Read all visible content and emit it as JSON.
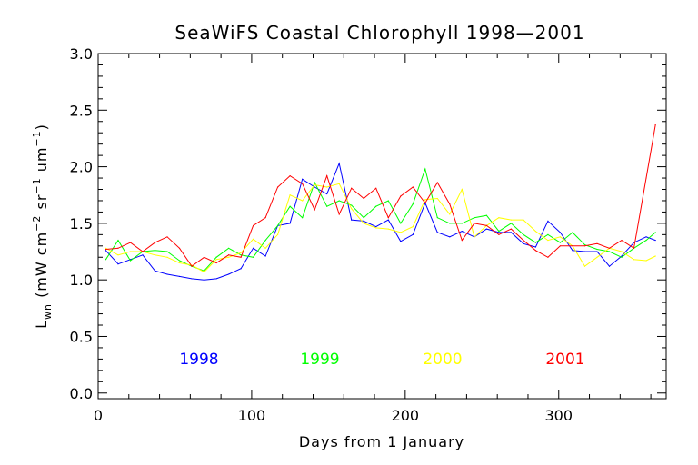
{
  "chart_data": {
    "type": "line",
    "title": "SeaWiFS Coastal Chlorophyll 1998—2001",
    "xlabel": "Days from 1 January",
    "ylabel": "L_wn (mW cm^-2 sr^-1 um^-1)",
    "ylabel_parts": {
      "L": "L",
      "sub": "wn",
      "open": " (mW cm",
      "exp1": "−2",
      "sr": " sr",
      "exp2": "−1",
      "um": " um",
      "exp3": "−1",
      "close": ")"
    },
    "xlim": [
      0,
      370
    ],
    "ylim": [
      -0.05,
      3.0
    ],
    "xticks": [
      0,
      100,
      200,
      300
    ],
    "yticks": [
      0.0,
      0.5,
      1.0,
      1.5,
      2.0,
      2.5,
      3.0
    ],
    "xtick_labels": [
      "0",
      "100",
      "200",
      "300"
    ],
    "ytick_labels": [
      "0.0",
      "0.5",
      "1.0",
      "1.5",
      "2.0",
      "2.5",
      "3.0"
    ],
    "grid": false,
    "legend_placement": "bottom, inline labels",
    "series": [
      {
        "name": "1998",
        "color": "#0000ff",
        "x": [
          5,
          13,
          21,
          29,
          37,
          45,
          53,
          61,
          69,
          77,
          85,
          93,
          101,
          109,
          117,
          125,
          133,
          141,
          149,
          157,
          165,
          173,
          181,
          189,
          197,
          205,
          213,
          221,
          229,
          237,
          245,
          253,
          261,
          269,
          277,
          285,
          293,
          301,
          309,
          317,
          325,
          333,
          341,
          349,
          357,
          363
        ],
        "y": [
          1.26,
          1.14,
          1.18,
          1.22,
          1.08,
          1.05,
          1.03,
          1.01,
          1.0,
          1.01,
          1.05,
          1.1,
          1.28,
          1.21,
          1.48,
          1.5,
          1.89,
          1.82,
          1.76,
          2.03,
          1.53,
          1.52,
          1.47,
          1.53,
          1.34,
          1.4,
          1.68,
          1.42,
          1.38,
          1.43,
          1.38,
          1.45,
          1.42,
          1.42,
          1.32,
          1.29,
          1.52,
          1.42,
          1.26,
          1.25,
          1.25,
          1.12,
          1.21,
          1.33,
          1.38,
          1.35
        ]
      },
      {
        "name": "1999",
        "color": "#00ff00",
        "x": [
          5,
          13,
          21,
          29,
          37,
          45,
          53,
          61,
          69,
          77,
          85,
          93,
          101,
          109,
          117,
          125,
          133,
          141,
          149,
          157,
          165,
          173,
          181,
          189,
          197,
          205,
          213,
          221,
          229,
          237,
          245,
          253,
          261,
          269,
          277,
          285,
          293,
          301,
          309,
          317,
          325,
          333,
          341,
          349,
          357,
          363
        ],
        "y": [
          1.18,
          1.35,
          1.17,
          1.25,
          1.26,
          1.25,
          1.17,
          1.12,
          1.08,
          1.2,
          1.28,
          1.22,
          1.2,
          1.35,
          1.48,
          1.65,
          1.55,
          1.86,
          1.65,
          1.7,
          1.66,
          1.55,
          1.65,
          1.7,
          1.5,
          1.67,
          1.98,
          1.55,
          1.5,
          1.5,
          1.55,
          1.57,
          1.43,
          1.5,
          1.4,
          1.33,
          1.4,
          1.33,
          1.42,
          1.31,
          1.27,
          1.25,
          1.2,
          1.28,
          1.35,
          1.42
        ]
      },
      {
        "name": "2000",
        "color": "#ffff00",
        "x": [
          5,
          13,
          21,
          29,
          37,
          45,
          53,
          61,
          69,
          77,
          85,
          93,
          101,
          109,
          117,
          125,
          133,
          141,
          149,
          157,
          165,
          173,
          181,
          189,
          197,
          205,
          213,
          221,
          229,
          237,
          245,
          253,
          261,
          269,
          277,
          285,
          293,
          301,
          309,
          317,
          325,
          333,
          341,
          349,
          357,
          363
        ],
        "y": [
          1.28,
          1.22,
          1.25,
          1.25,
          1.22,
          1.2,
          1.15,
          1.13,
          1.07,
          1.18,
          1.2,
          1.24,
          1.36,
          1.28,
          1.4,
          1.75,
          1.7,
          1.84,
          1.82,
          1.85,
          1.63,
          1.5,
          1.46,
          1.45,
          1.42,
          1.47,
          1.71,
          1.72,
          1.58,
          1.8,
          1.38,
          1.48,
          1.55,
          1.53,
          1.53,
          1.43,
          1.35,
          1.38,
          1.3,
          1.12,
          1.2,
          1.28,
          1.25,
          1.18,
          1.17,
          1.21
        ]
      },
      {
        "name": "2001",
        "color": "#ff0000",
        "x": [
          5,
          13,
          21,
          29,
          37,
          45,
          53,
          61,
          69,
          77,
          85,
          93,
          101,
          109,
          117,
          125,
          133,
          141,
          149,
          157,
          165,
          173,
          181,
          189,
          197,
          205,
          213,
          221,
          229,
          237,
          245,
          253,
          261,
          269,
          277,
          285,
          293,
          301,
          309,
          317,
          325,
          333,
          341,
          349,
          357,
          363
        ],
        "y": [
          1.27,
          1.28,
          1.33,
          1.25,
          1.33,
          1.38,
          1.28,
          1.12,
          1.2,
          1.15,
          1.22,
          1.2,
          1.48,
          1.55,
          1.82,
          1.92,
          1.85,
          1.62,
          1.92,
          1.58,
          1.81,
          1.72,
          1.81,
          1.55,
          1.74,
          1.82,
          1.68,
          1.86,
          1.67,
          1.35,
          1.5,
          1.48,
          1.4,
          1.45,
          1.35,
          1.26,
          1.2,
          1.3,
          1.3,
          1.3,
          1.32,
          1.28,
          1.35,
          1.28,
          1.9,
          2.37
        ]
      }
    ]
  }
}
